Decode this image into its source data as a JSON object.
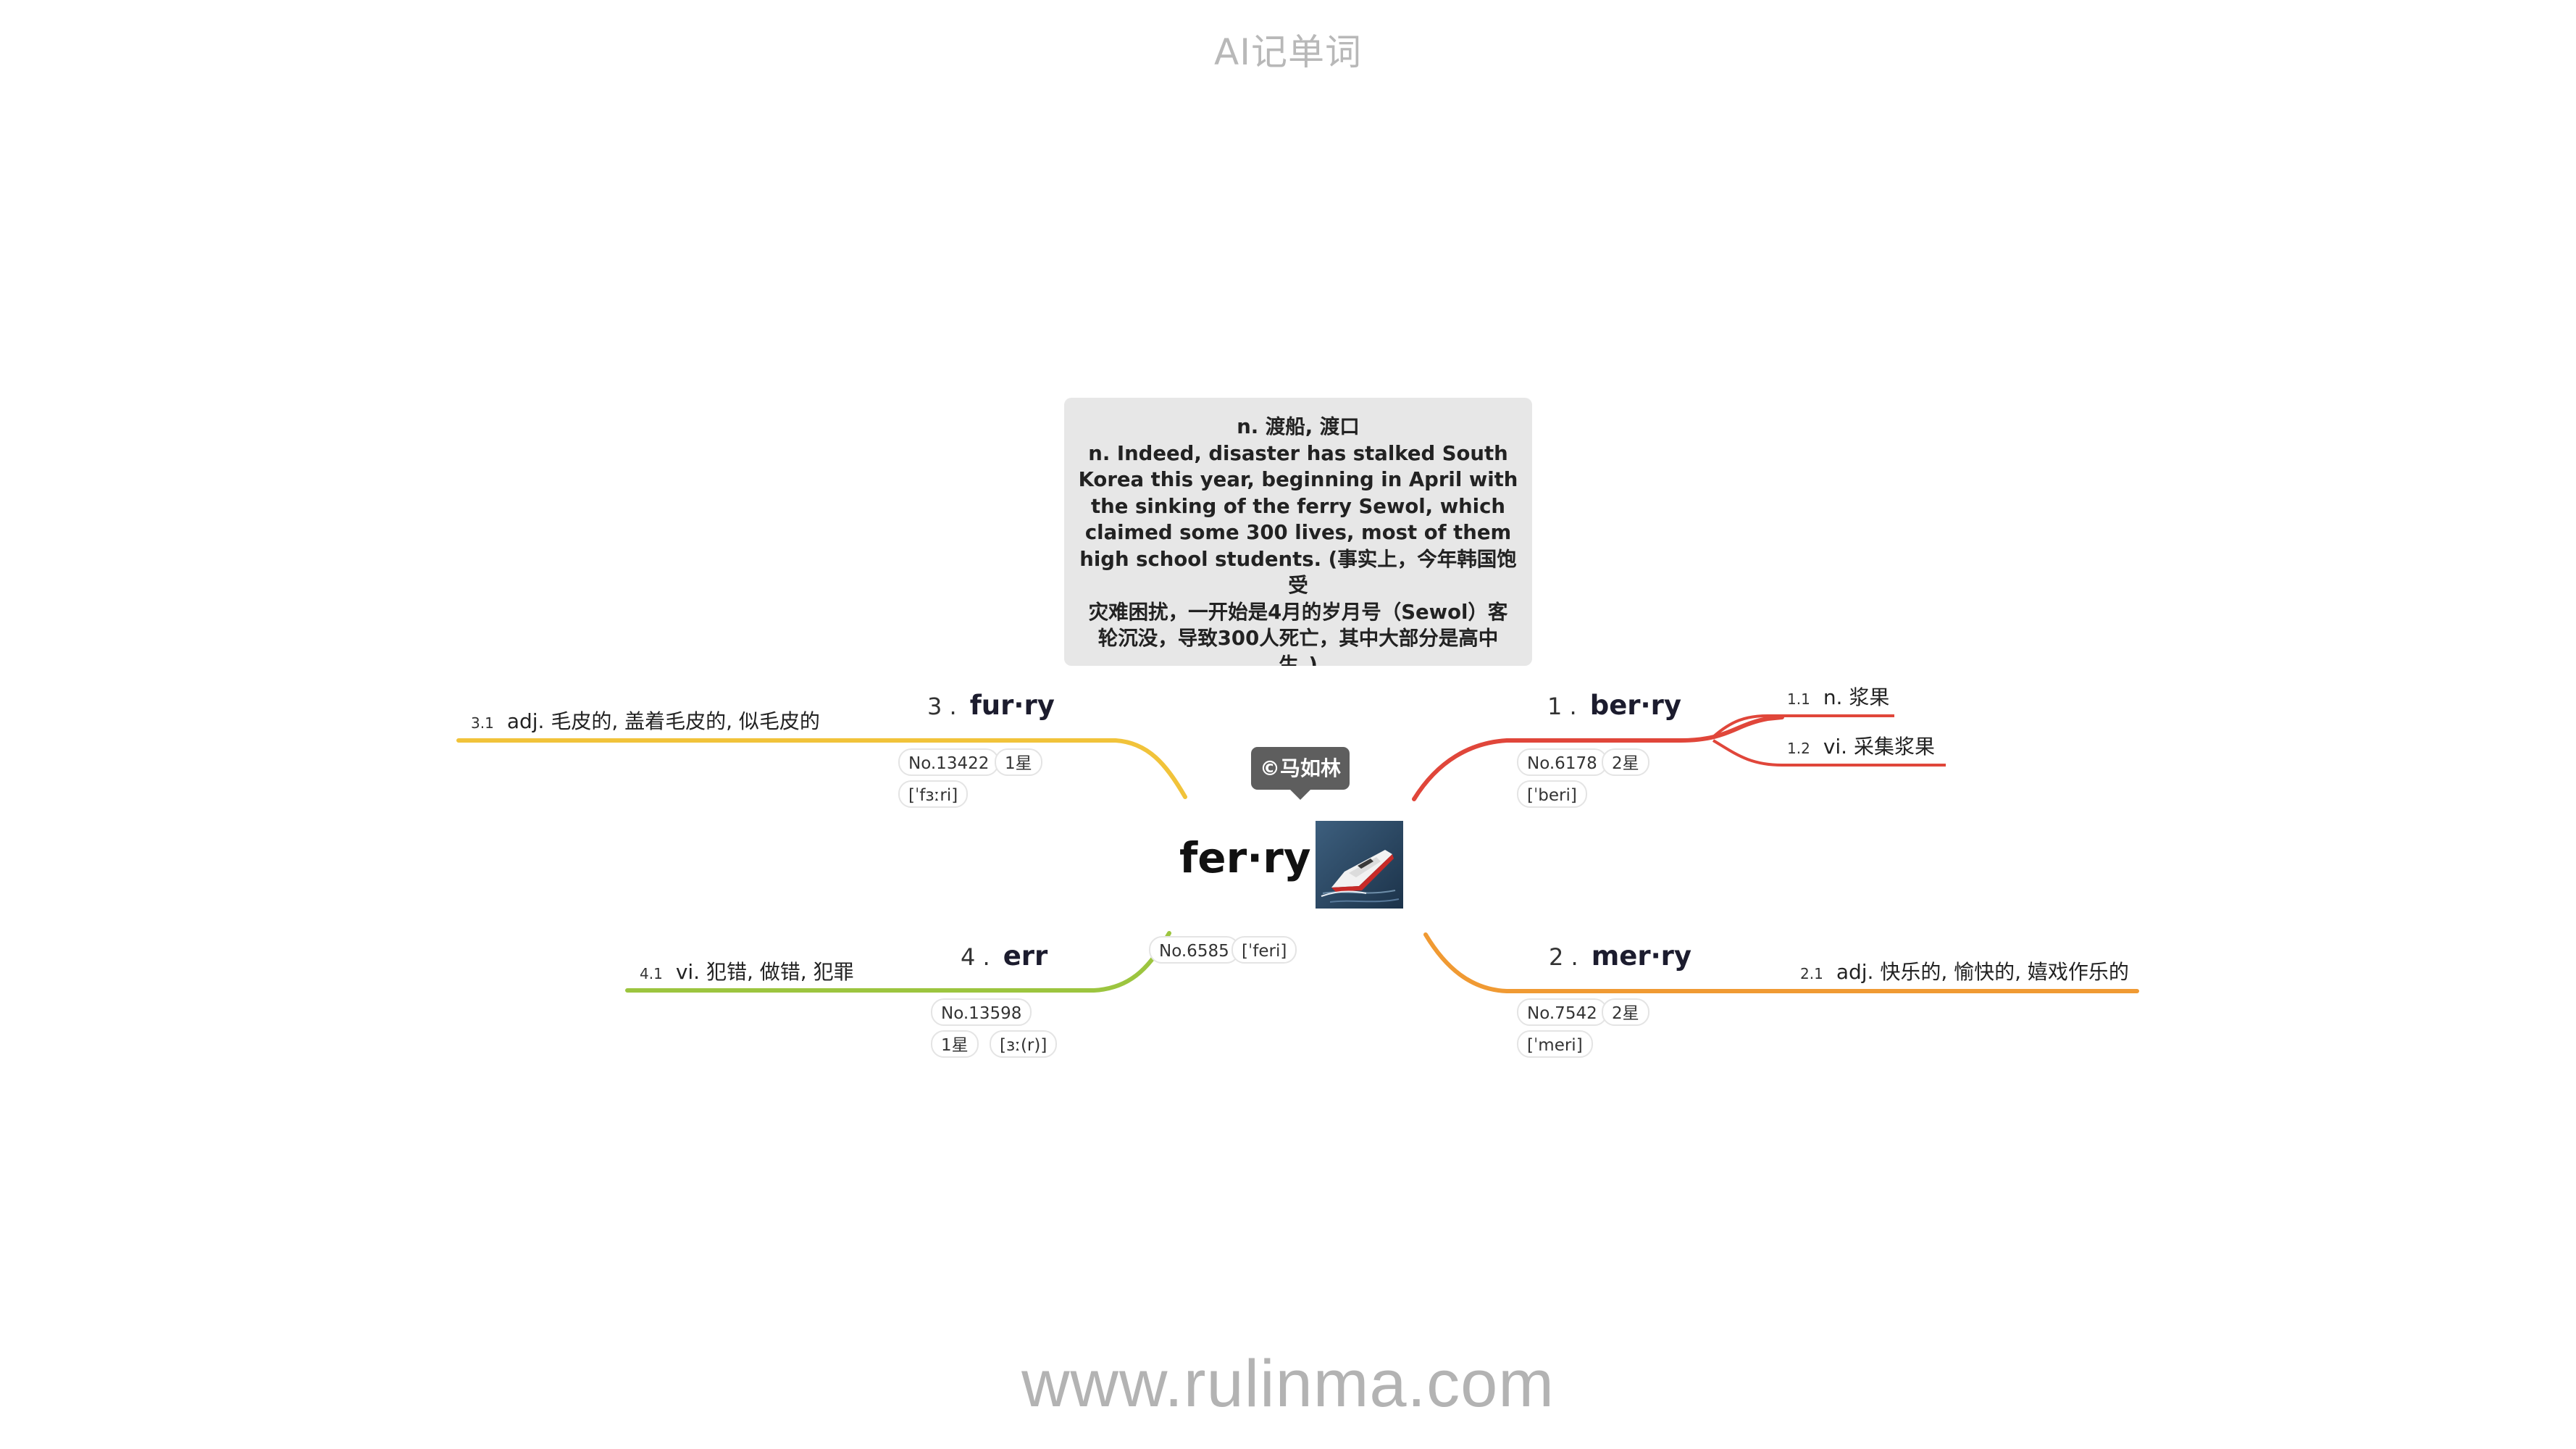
{
  "header": {
    "title": "AI记单词"
  },
  "footer": {
    "url": "www.rulinma.com"
  },
  "note": {
    "lines": [
      "n. 渡船, 渡口",
      "n. Indeed, disaster has stalked South",
      "Korea this year, beginning in April with",
      "the sinking of the ferry Sewol, which",
      "claimed some 300 lives, most of them",
      "high school students. (事实上，今年韩国饱受",
      "灾难困扰，一开始是4月的岁月号（Sewol）客",
      "轮沉没，导致300人死亡，其中大部分是高中",
      "生。)"
    ]
  },
  "copyright": "©马如林",
  "center": {
    "word": "fer·ry",
    "no": "No.6585",
    "phonetic": "[ˈferi]"
  },
  "colors": {
    "red": "#e0463a",
    "orange": "#f09a33",
    "yellow": "#f1c33a",
    "green": "#9cc53f"
  },
  "branches": [
    {
      "num": "1 .",
      "word": "ber·ry",
      "no": "No.6178",
      "stars": "2星",
      "phonetic": "[ˈberi]",
      "subs": [
        {
          "num": "1.1",
          "text": "n. 浆果"
        },
        {
          "num": "1.2",
          "text": "vi. 采集浆果"
        }
      ]
    },
    {
      "num": "2 .",
      "word": "mer·ry",
      "no": "No.7542",
      "stars": "2星",
      "phonetic": "[ˈmeri]",
      "subs": [
        {
          "num": "2.1",
          "text": "adj. 快乐的, 愉快的, 嬉戏作乐的"
        }
      ]
    },
    {
      "num": "3 .",
      "word": "fur·ry",
      "no": "No.13422",
      "stars": "1星",
      "phonetic": "[ˈfɜːri]",
      "subs": [
        {
          "num": "3.1",
          "text": "adj. 毛皮的, 盖着毛皮的, 似毛皮的"
        }
      ]
    },
    {
      "num": "4 .",
      "word": "err",
      "no": "No.13598",
      "stars": "1星",
      "phonetic": "[ɜː(r)]",
      "subs": [
        {
          "num": "4.1",
          "text": "vi. 犯错, 做错, 犯罪"
        }
      ]
    }
  ]
}
